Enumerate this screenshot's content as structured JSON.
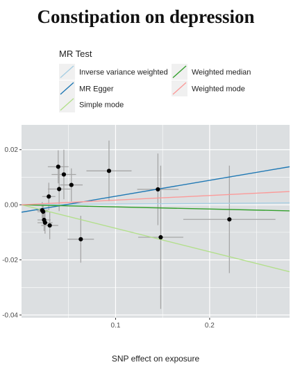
{
  "chart_data": {
    "type": "scatter",
    "title": "Constipation on depression",
    "xlabel": "SNP effect on exposure",
    "ylabel": "",
    "xlim": [
      0.0,
      0.285
    ],
    "ylim": [
      -0.041,
      0.029
    ],
    "x_ticks": [
      0.1,
      0.2
    ],
    "x_tick_labels": [
      "0.1",
      "0.2"
    ],
    "y_ticks": [
      0.02,
      0.0,
      -0.02,
      -0.04
    ],
    "y_tick_labels": [
      "0.02",
      "0.00",
      "-0.02",
      "-0.04"
    ],
    "grid": true,
    "legend": {
      "title": "MR Test",
      "placement": "top",
      "entries": [
        {
          "name": "Inverse variance weighted",
          "color": "#a6cee3"
        },
        {
          "name": "MR Egger",
          "color": "#1f78b4"
        },
        {
          "name": "Simple mode",
          "color": "#b2df8a"
        },
        {
          "name": "Weighted median",
          "color": "#33a02c"
        },
        {
          "name": "Weighted mode",
          "color": "#fb9a99"
        }
      ]
    },
    "lines": [
      {
        "name": "Inverse variance weighted",
        "color": "#a6cee3",
        "x": [
          0.0,
          0.285
        ],
        "y": [
          0.0,
          0.0007
        ]
      },
      {
        "name": "MR Egger",
        "color": "#1f78b4",
        "x": [
          0.0,
          0.285
        ],
        "y": [
          -0.0027,
          0.0138
        ]
      },
      {
        "name": "Simple mode",
        "color": "#b2df8a",
        "x": [
          0.0,
          0.285
        ],
        "y": [
          0.0,
          -0.0243
        ]
      },
      {
        "name": "Weighted median",
        "color": "#33a02c",
        "x": [
          0.0,
          0.285
        ],
        "y": [
          0.0,
          -0.0022
        ]
      },
      {
        "name": "Weighted mode",
        "color": "#fb9a99",
        "x": [
          0.0,
          0.285
        ],
        "y": [
          0.0,
          0.0048
        ]
      }
    ],
    "points": [
      {
        "x": 0.022,
        "y": -0.002,
        "xerr": 0.006,
        "yerr": 0.003
      },
      {
        "x": 0.023,
        "y": -0.0025,
        "xerr": 0.006,
        "yerr": 0.003
      },
      {
        "x": 0.024,
        "y": -0.0055,
        "xerr": 0.007,
        "yerr": 0.004
      },
      {
        "x": 0.025,
        "y": -0.0065,
        "xerr": 0.008,
        "yerr": 0.004
      },
      {
        "x": 0.03,
        "y": -0.0075,
        "xerr": 0.009,
        "yerr": 0.005
      },
      {
        "x": 0.029,
        "y": 0.003,
        "xerr": 0.007,
        "yerr": 0.005
      },
      {
        "x": 0.039,
        "y": 0.0138,
        "xerr": 0.011,
        "yerr": 0.006
      },
      {
        "x": 0.04,
        "y": 0.0057,
        "xerr": 0.012,
        "yerr": 0.008
      },
      {
        "x": 0.045,
        "y": 0.011,
        "xerr": 0.013,
        "yerr": 0.009
      },
      {
        "x": 0.053,
        "y": 0.0072,
        "xerr": 0.012,
        "yerr": 0.006
      },
      {
        "x": 0.063,
        "y": -0.0125,
        "xerr": 0.014,
        "yerr": 0.0085
      },
      {
        "x": 0.093,
        "y": 0.0123,
        "xerr": 0.024,
        "yerr": 0.011
      },
      {
        "x": 0.145,
        "y": 0.0056,
        "xerr": 0.022,
        "yerr": 0.013
      },
      {
        "x": 0.148,
        "y": -0.0118,
        "xerr": 0.024,
        "yerr": 0.026
      },
      {
        "x": 0.221,
        "y": -0.0053,
        "xerr": 0.049,
        "yerr": 0.0195
      }
    ],
    "point_color": "#000000",
    "errorbar_color": "#a6a6a6",
    "panel_background": "#dcdfe1",
    "grid_color": "#ffffff"
  }
}
